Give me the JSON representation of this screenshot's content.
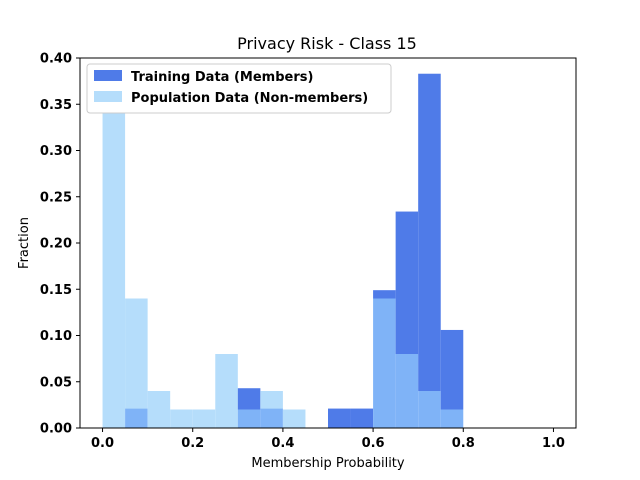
{
  "chart_data": {
    "type": "bar",
    "title": "Privacy Risk - Class 15",
    "xlabel": "Membership Probability",
    "ylabel": "Fraction",
    "xlim": [
      -0.05,
      1.05
    ],
    "ylim": [
      0,
      0.4
    ],
    "bin_width": 0.05,
    "bin_starts": [
      0.0,
      0.05,
      0.1,
      0.15,
      0.2,
      0.25,
      0.3,
      0.35,
      0.4,
      0.45,
      0.5,
      0.55,
      0.6,
      0.65,
      0.7,
      0.75,
      0.8,
      0.85,
      0.9,
      0.95
    ],
    "x_ticks": [
      "0.0",
      "0.2",
      "0.4",
      "0.6",
      "0.8",
      "1.0"
    ],
    "y_ticks": [
      "0.00",
      "0.05",
      "0.10",
      "0.15",
      "0.20",
      "0.25",
      "0.30",
      "0.35",
      "0.40"
    ],
    "legend_position": "top-left",
    "series": [
      {
        "name": "Training Data (Members)",
        "color": "#4f7be8",
        "values": [
          0,
          0.021,
          0,
          0,
          0,
          0,
          0.043,
          0.021,
          0,
          0,
          0.021,
          0.021,
          0.149,
          0.234,
          0.383,
          0.106,
          0,
          0,
          0,
          0
        ]
      },
      {
        "name": "Population Data (Non-members)",
        "color": "#b5ddfb",
        "values": [
          0.34,
          0.14,
          0.04,
          0.02,
          0.02,
          0.08,
          0.02,
          0.04,
          0.02,
          0,
          0,
          0,
          0.14,
          0.08,
          0.04,
          0.02,
          0,
          0,
          0,
          0
        ]
      }
    ],
    "overlap_color": "#7fb3f7"
  }
}
